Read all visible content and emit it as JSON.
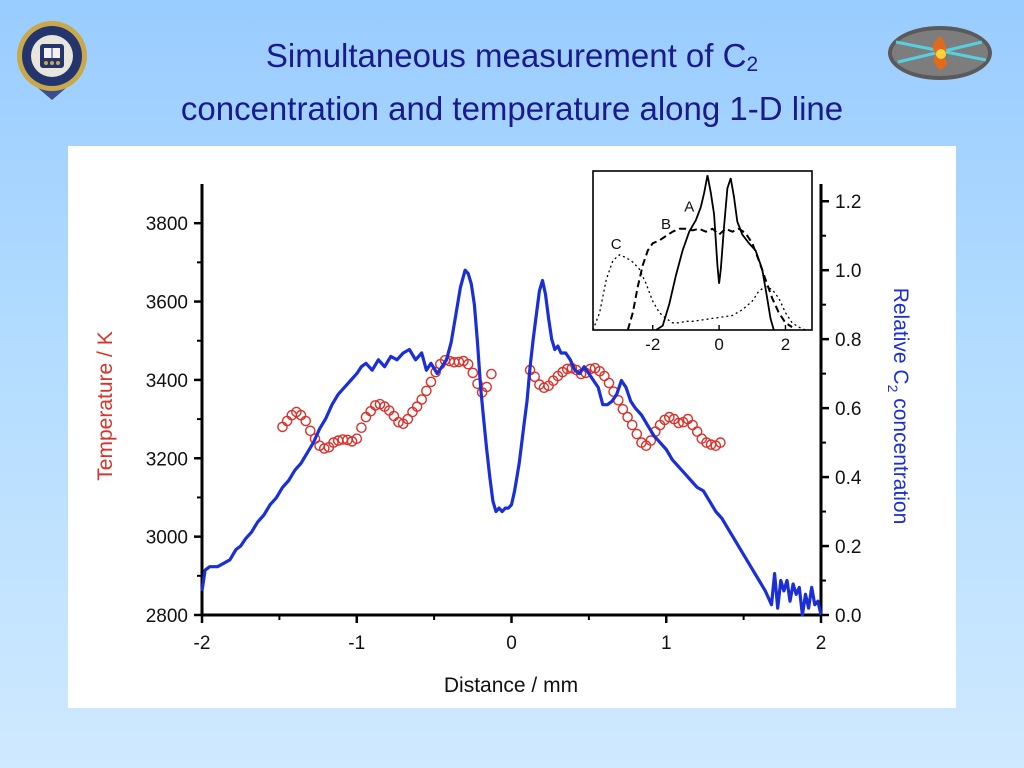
{
  "slide": {
    "title_line1_main": "Simultaneous measurement of C",
    "title_line1_sub": "2",
    "title_line2": "concentration and temperature along 1-D line"
  },
  "logos": {
    "left": "oxford-crest-logo",
    "right": "laser-flame-logo"
  },
  "colors": {
    "background": "#99ccff",
    "title": "#1a1a8c",
    "temperature": "#d9322b",
    "concentration": "#1a2fd6"
  },
  "chart_data": [
    {
      "type": "scatter",
      "xlabel": "Distance / mm",
      "ylabel_left": "Temperature / K",
      "ylabel_right_main": "Relative C",
      "ylabel_right_sub": "2",
      "ylabel_right_tail": " concentration",
      "xlim": [
        -2,
        2
      ],
      "ylim_left": [
        2800,
        3900
      ],
      "ylim_right": [
        0.0,
        1.25
      ],
      "x_ticks": [
        -2,
        -1,
        0,
        1,
        2
      ],
      "x_tick_labels": [
        "-2",
        "-1",
        "0",
        "1",
        "2"
      ],
      "y_left_ticks": [
        2800,
        3000,
        3200,
        3400,
        3600,
        3800
      ],
      "y_left_tick_labels": [
        "2800",
        "3000",
        "3200",
        "3400",
        "3600",
        "3800"
      ],
      "y_right_ticks": [
        0.0,
        0.2,
        0.4,
        0.6,
        0.8,
        1.0,
        1.2
      ],
      "y_right_tick_labels": [
        "0.0",
        "0.2",
        "0.4",
        "0.6",
        "0.8",
        "1.0",
        "1.2"
      ],
      "grid": false,
      "series": [
        {
          "axis": "left",
          "style": "open-circles",
          "color": "#d9322b",
          "x": [
            -1.48,
            -1.45,
            -1.42,
            -1.39,
            -1.36,
            -1.33,
            -1.3,
            -1.27,
            -1.24,
            -1.21,
            -1.18,
            -1.15,
            -1.12,
            -1.09,
            -1.06,
            -1.03,
            -1.0,
            -0.97,
            -0.94,
            -0.91,
            -0.88,
            -0.85,
            -0.82,
            -0.79,
            -0.76,
            -0.73,
            -0.7,
            -0.67,
            -0.64,
            -0.61,
            -0.58,
            -0.55,
            -0.52,
            -0.49,
            -0.46,
            -0.43,
            -0.4,
            -0.37,
            -0.34,
            -0.31,
            -0.28,
            -0.25,
            -0.22,
            -0.19,
            -0.16,
            -0.13,
            0.12,
            0.15,
            0.18,
            0.21,
            0.24,
            0.27,
            0.3,
            0.33,
            0.36,
            0.39,
            0.42,
            0.45,
            0.48,
            0.51,
            0.54,
            0.57,
            0.6,
            0.63,
            0.66,
            0.69,
            0.72,
            0.75,
            0.78,
            0.81,
            0.84,
            0.87,
            0.9,
            0.93,
            0.96,
            0.99,
            1.02,
            1.05,
            1.08,
            1.11,
            1.14,
            1.17,
            1.2,
            1.23,
            1.26,
            1.29,
            1.32,
            1.35
          ],
          "y": [
            3280,
            3295,
            3310,
            3318,
            3310,
            3295,
            3270,
            3250,
            3232,
            3225,
            3228,
            3240,
            3245,
            3248,
            3247,
            3243,
            3250,
            3278,
            3305,
            3320,
            3335,
            3338,
            3332,
            3322,
            3308,
            3292,
            3288,
            3300,
            3318,
            3332,
            3350,
            3372,
            3395,
            3420,
            3440,
            3450,
            3448,
            3445,
            3446,
            3448,
            3440,
            3418,
            3390,
            3368,
            3382,
            3415,
            3425,
            3408,
            3388,
            3380,
            3385,
            3398,
            3410,
            3420,
            3428,
            3430,
            3425,
            3415,
            3418,
            3428,
            3430,
            3422,
            3410,
            3392,
            3370,
            3348,
            3325,
            3305,
            3285,
            3262,
            3240,
            3232,
            3245,
            3268,
            3285,
            3298,
            3305,
            3300,
            3290,
            3292,
            3300,
            3285,
            3268,
            3250,
            3240,
            3235,
            3232,
            3240
          ]
        },
        {
          "axis": "right",
          "style": "line",
          "color": "#1a2fd6",
          "x": [
            -2.0,
            -1.98,
            -1.95,
            -1.9,
            -1.86,
            -1.82,
            -1.78,
            -1.75,
            -1.72,
            -1.68,
            -1.64,
            -1.6,
            -1.56,
            -1.52,
            -1.48,
            -1.44,
            -1.4,
            -1.36,
            -1.32,
            -1.28,
            -1.24,
            -1.2,
            -1.16,
            -1.12,
            -1.08,
            -1.04,
            -1.0,
            -0.97,
            -0.94,
            -0.9,
            -0.86,
            -0.82,
            -0.78,
            -0.74,
            -0.7,
            -0.66,
            -0.62,
            -0.58,
            -0.55,
            -0.52,
            -0.48,
            -0.45,
            -0.42,
            -0.39,
            -0.36,
            -0.33,
            -0.3,
            -0.28,
            -0.26,
            -0.24,
            -0.22,
            -0.2,
            -0.18,
            -0.16,
            -0.14,
            -0.12,
            -0.1,
            -0.08,
            -0.06,
            -0.04,
            -0.02,
            0.0,
            0.02,
            0.05,
            0.08,
            0.1,
            0.12,
            0.14,
            0.16,
            0.18,
            0.2,
            0.22,
            0.24,
            0.26,
            0.28,
            0.3,
            0.32,
            0.35,
            0.38,
            0.41,
            0.44,
            0.47,
            0.5,
            0.53,
            0.56,
            0.59,
            0.62,
            0.65,
            0.68,
            0.71,
            0.74,
            0.77,
            0.8,
            0.84,
            0.88,
            0.92,
            0.96,
            1.0,
            1.04,
            1.08,
            1.12,
            1.16,
            1.2,
            1.24,
            1.28,
            1.32,
            1.36,
            1.4,
            1.44,
            1.48,
            1.52,
            1.56,
            1.6,
            1.64,
            1.68,
            1.7,
            1.72,
            1.74,
            1.76,
            1.78,
            1.8,
            1.82,
            1.84,
            1.86,
            1.88,
            1.9,
            1.92,
            1.94,
            1.96,
            1.98,
            2.0
          ],
          "y": [
            0.07,
            0.13,
            0.14,
            0.14,
            0.15,
            0.16,
            0.19,
            0.2,
            0.22,
            0.24,
            0.27,
            0.29,
            0.32,
            0.34,
            0.37,
            0.39,
            0.42,
            0.44,
            0.47,
            0.5,
            0.54,
            0.57,
            0.61,
            0.64,
            0.66,
            0.68,
            0.7,
            0.72,
            0.73,
            0.71,
            0.74,
            0.72,
            0.75,
            0.74,
            0.76,
            0.77,
            0.74,
            0.76,
            0.71,
            0.73,
            0.7,
            0.72,
            0.74,
            0.79,
            0.87,
            0.95,
            1.0,
            0.99,
            0.96,
            0.9,
            0.79,
            0.66,
            0.57,
            0.48,
            0.4,
            0.33,
            0.3,
            0.31,
            0.3,
            0.31,
            0.31,
            0.32,
            0.36,
            0.44,
            0.55,
            0.62,
            0.72,
            0.8,
            0.87,
            0.94,
            0.97,
            0.93,
            0.86,
            0.8,
            0.77,
            0.78,
            0.76,
            0.76,
            0.74,
            0.71,
            0.7,
            0.72,
            0.7,
            0.68,
            0.66,
            0.61,
            0.61,
            0.62,
            0.64,
            0.68,
            0.66,
            0.62,
            0.6,
            0.58,
            0.55,
            0.52,
            0.5,
            0.48,
            0.45,
            0.43,
            0.41,
            0.39,
            0.37,
            0.36,
            0.33,
            0.3,
            0.28,
            0.25,
            0.22,
            0.19,
            0.16,
            0.13,
            0.1,
            0.07,
            0.03,
            0.12,
            0.02,
            0.1,
            0.07,
            0.1,
            0.04,
            0.09,
            0.06,
            0.08,
            0.0,
            0.06,
            0.02,
            0.08,
            0.03,
            0.04,
            0.0
          ]
        }
      ]
    },
    {
      "type": "line",
      "inset": true,
      "xlim": [
        -3.8,
        2.8
      ],
      "ylim": [
        0,
        1.1
      ],
      "x_ticks": [
        -2,
        0,
        2
      ],
      "x_tick_labels": [
        "-2",
        "0",
        "2"
      ],
      "grid": false,
      "series": [
        {
          "name": "A",
          "style": "solid",
          "x": [
            -1.9,
            -1.7,
            -1.5,
            -1.3,
            -1.1,
            -0.9,
            -0.7,
            -0.55,
            -0.45,
            -0.35,
            -0.25,
            -0.15,
            -0.05,
            0.0,
            0.05,
            0.15,
            0.25,
            0.35,
            0.45,
            0.55,
            0.7,
            0.9,
            1.1,
            1.3,
            1.45,
            1.55,
            1.65
          ],
          "y": [
            0.0,
            0.03,
            0.18,
            0.38,
            0.55,
            0.68,
            0.76,
            0.85,
            0.95,
            1.07,
            0.95,
            0.8,
            0.45,
            0.32,
            0.42,
            0.72,
            0.98,
            1.05,
            0.92,
            0.75,
            0.66,
            0.6,
            0.55,
            0.42,
            0.22,
            0.08,
            0.0
          ]
        },
        {
          "name": "B",
          "style": "dashed",
          "x": [
            -2.75,
            -2.6,
            -2.45,
            -2.3,
            -2.15,
            -2.0,
            -1.8,
            -1.6,
            -1.4,
            -1.2,
            -1.0,
            -0.8,
            -0.6,
            -0.4,
            -0.2,
            0.0,
            0.2,
            0.4,
            0.6,
            0.8,
            1.0,
            1.2,
            1.4,
            1.6,
            1.8,
            2.0,
            2.2
          ],
          "y": [
            0.0,
            0.12,
            0.3,
            0.45,
            0.55,
            0.6,
            0.62,
            0.65,
            0.68,
            0.7,
            0.7,
            0.69,
            0.7,
            0.68,
            0.7,
            0.66,
            0.7,
            0.68,
            0.7,
            0.67,
            0.6,
            0.48,
            0.35,
            0.22,
            0.12,
            0.05,
            0.02
          ]
        },
        {
          "name": "C",
          "style": "dotted",
          "x": [
            -3.8,
            -3.6,
            -3.4,
            -3.2,
            -3.0,
            -2.8,
            -2.6,
            -2.4,
            -2.2,
            -2.0,
            -1.8,
            -1.6,
            -1.4,
            -1.2,
            -1.0,
            -0.8,
            -0.5,
            -0.2,
            0.1,
            0.4,
            0.7,
            1.0,
            1.2,
            1.4,
            1.6,
            1.8,
            2.0,
            2.2,
            2.4,
            2.6
          ],
          "y": [
            0.0,
            0.12,
            0.35,
            0.48,
            0.52,
            0.5,
            0.47,
            0.42,
            0.32,
            0.2,
            0.12,
            0.08,
            0.05,
            0.05,
            0.06,
            0.06,
            0.07,
            0.08,
            0.09,
            0.1,
            0.14,
            0.2,
            0.27,
            0.3,
            0.28,
            0.22,
            0.12,
            0.05,
            0.02,
            0.0
          ]
        }
      ]
    }
  ]
}
